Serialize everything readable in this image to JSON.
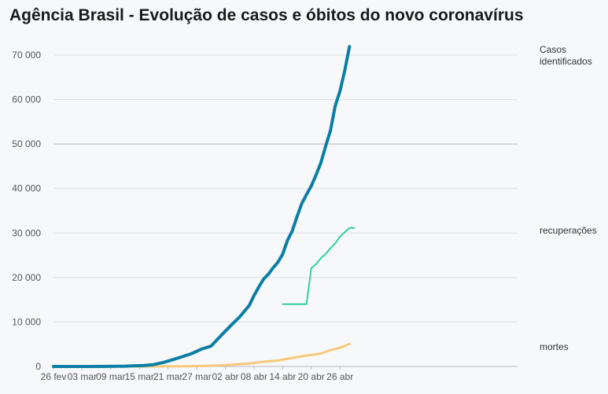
{
  "chart_data": {
    "type": "line",
    "title": "Agência Brasil - Evolução de casos e óbitos do novo coronavírus",
    "xlabel": "",
    "ylabel": "",
    "x_ticks": [
      "26 fev",
      "03 mar",
      "09 mar",
      "15 mar",
      "21 mar",
      "27 mar",
      "02 abr",
      "08 abr",
      "14 abr",
      "20 abr",
      "26 abr"
    ],
    "y_ticks": [
      "0",
      "10 000",
      "20 000",
      "30 000",
      "40 000",
      "50 000",
      "60 000",
      "70 000"
    ],
    "ylim": [
      0,
      72000
    ],
    "x_range": [
      "2020-02-26",
      "2020-04-28"
    ],
    "grid": true,
    "series": [
      {
        "name": "Casos identificados",
        "name_lines": [
          "Casos",
          "identificados"
        ],
        "color": "#0a7ea4",
        "points": [
          [
            "2020-02-26",
            1
          ],
          [
            "2020-03-01",
            2
          ],
          [
            "2020-03-05",
            8
          ],
          [
            "2020-03-08",
            25
          ],
          [
            "2020-03-10",
            34
          ],
          [
            "2020-03-12",
            77
          ],
          [
            "2020-03-14",
            151
          ],
          [
            "2020-03-16",
            234
          ],
          [
            "2020-03-18",
            428
          ],
          [
            "2020-03-20",
            904
          ],
          [
            "2020-03-22",
            1546
          ],
          [
            "2020-03-24",
            2201
          ],
          [
            "2020-03-26",
            2915
          ],
          [
            "2020-03-28",
            3904
          ],
          [
            "2020-03-30",
            4579
          ],
          [
            "2020-04-01",
            6836
          ],
          [
            "2020-04-03",
            9056
          ],
          [
            "2020-04-05",
            11130
          ],
          [
            "2020-04-07",
            13717
          ],
          [
            "2020-04-08",
            15927
          ],
          [
            "2020-04-09",
            17857
          ],
          [
            "2020-04-10",
            19638
          ],
          [
            "2020-04-11",
            20727
          ],
          [
            "2020-04-12",
            22169
          ],
          [
            "2020-04-13",
            23430
          ],
          [
            "2020-04-14",
            25262
          ],
          [
            "2020-04-15",
            28320
          ],
          [
            "2020-04-16",
            30425
          ],
          [
            "2020-04-17",
            33682
          ],
          [
            "2020-04-18",
            36599
          ],
          [
            "2020-04-19",
            38654
          ],
          [
            "2020-04-20",
            40581
          ],
          [
            "2020-04-21",
            43079
          ],
          [
            "2020-04-22",
            45757
          ],
          [
            "2020-04-23",
            49492
          ],
          [
            "2020-04-24",
            52995
          ],
          [
            "2020-04-25",
            58509
          ],
          [
            "2020-04-26",
            61888
          ],
          [
            "2020-04-27",
            66501
          ],
          [
            "2020-04-28",
            71886
          ]
        ]
      },
      {
        "name": "recuperações",
        "color": "#2ed1a2",
        "points": [
          [
            "2020-04-14",
            14026
          ],
          [
            "2020-04-19",
            14026
          ],
          [
            "2020-04-20",
            22130
          ],
          [
            "2020-04-21",
            22991
          ],
          [
            "2020-04-22",
            24325
          ],
          [
            "2020-04-23",
            25318
          ],
          [
            "2020-04-24",
            26573
          ],
          [
            "2020-04-25",
            27655
          ],
          [
            "2020-04-26",
            29160
          ],
          [
            "2020-04-27",
            30152
          ],
          [
            "2020-04-28",
            31142
          ],
          [
            "2020-04-29",
            31142
          ]
        ]
      },
      {
        "name": "mortes",
        "color": "#f7c97a",
        "points": [
          [
            "2020-02-26",
            0
          ],
          [
            "2020-03-17",
            1
          ],
          [
            "2020-03-20",
            11
          ],
          [
            "2020-03-23",
            34
          ],
          [
            "2020-03-26",
            77
          ],
          [
            "2020-03-29",
            136
          ],
          [
            "2020-04-01",
            241
          ],
          [
            "2020-04-04",
            445
          ],
          [
            "2020-04-07",
            667
          ],
          [
            "2020-04-10",
            1057
          ],
          [
            "2020-04-13",
            1328
          ],
          [
            "2020-04-16",
            1924
          ],
          [
            "2020-04-19",
            2462
          ],
          [
            "2020-04-22",
            2906
          ],
          [
            "2020-04-24",
            3670
          ],
          [
            "2020-04-26",
            4205
          ],
          [
            "2020-04-27",
            4603
          ],
          [
            "2020-04-28",
            5083
          ]
        ]
      }
    ]
  }
}
